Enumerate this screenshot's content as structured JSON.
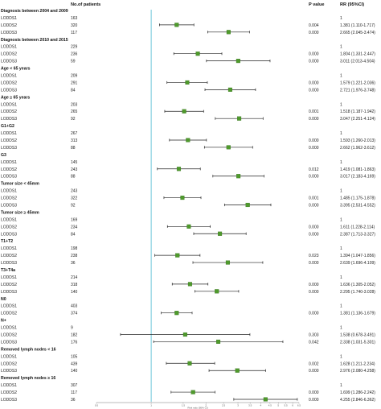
{
  "header": {
    "no_patients": "No.of patients",
    "p_value": "P value",
    "rr_ci": "RR (95%CI)"
  },
  "chart_data": {
    "type": "forest",
    "x_scale": "log",
    "xlim": [
      0.5,
      6.5
    ],
    "reference_line": 1,
    "axis_ticks": [
      "0.5",
      "1",
      "1.5",
      "2",
      "2.5",
      "3",
      "3.5",
      "4",
      "4.5",
      "5",
      "5.5",
      "6",
      "6.5"
    ],
    "axis_label": "Risk ratio (95% CI)",
    "marker_color": "#4f9a2c",
    "reference_color": "#5bc0d6",
    "groups": [
      {
        "title": "Diagnosis between 2004 and 2009",
        "rows": [
          {
            "label": "LODDS1",
            "n": "163",
            "p": "",
            "rr": 1,
            "lo": null,
            "hi": null,
            "text": "1"
          },
          {
            "label": "LODDS2",
            "n": "320",
            "p": "0.004",
            "rr": 1.381,
            "lo": 1.11,
            "hi": 1.717,
            "text": "1.381 (1.110-1.717)"
          },
          {
            "label": "LODDS3",
            "n": "117",
            "p": "0.000",
            "rr": 2.665,
            "lo": 2.045,
            "hi": 3.474,
            "text": "2.665 (2.045-3.474)"
          }
        ]
      },
      {
        "title": "Diagnosis between 2010 and 2015",
        "rows": [
          {
            "label": "LODDS1",
            "n": "229",
            "p": "",
            "rr": 1,
            "lo": null,
            "hi": null,
            "text": "1"
          },
          {
            "label": "LODDS2",
            "n": "236",
            "p": "0.000",
            "rr": 1.804,
            "lo": 1.331,
            "hi": 2.447,
            "text": "1.804 (1.331-2.447)"
          },
          {
            "label": "LODDS3",
            "n": "59",
            "p": "0.000",
            "rr": 3.011,
            "lo": 2.013,
            "hi": 4.504,
            "text": "3.011 (2.013-4.504)"
          }
        ]
      },
      {
        "title": "Age < 65 years",
        "rows": [
          {
            "label": "LODDS1",
            "n": "209",
            "p": "",
            "rr": 1,
            "lo": null,
            "hi": null,
            "text": "1"
          },
          {
            "label": "LODDS2",
            "n": "291",
            "p": "0.000",
            "rr": 1.579,
            "lo": 1.221,
            "hi": 2.036,
            "text": "1.579 (1.221-2.036)"
          },
          {
            "label": "LODDS3",
            "n": "84",
            "p": "0.000",
            "rr": 2.721,
            "lo": 1.976,
            "hi": 3.748,
            "text": "2.721 (1.976-3.748)"
          }
        ]
      },
      {
        "title": "Age ≥ 65 years",
        "rows": [
          {
            "label": "LODDS1",
            "n": "203",
            "p": "",
            "rr": 1,
            "lo": null,
            "hi": null,
            "text": "1"
          },
          {
            "label": "LODDS2",
            "n": "265",
            "p": "0.001",
            "rr": 1.518,
            "lo": 1.187,
            "hi": 1.942,
            "text": "1.518 (1.187-1.942)"
          },
          {
            "label": "LODDS3",
            "n": "92",
            "p": "0.000",
            "rr": 3.047,
            "lo": 2.251,
            "hi": 4.124,
            "text": "3.047 (2.251-4.124)"
          }
        ]
      },
      {
        "title": "G1+G2",
        "rows": [
          {
            "label": "LODDS1",
            "n": "267",
            "p": "",
            "rr": 1,
            "lo": null,
            "hi": null,
            "text": "1"
          },
          {
            "label": "LODDS2",
            "n": "313",
            "p": "0.000",
            "rr": 1.593,
            "lo": 1.26,
            "hi": 2.013,
            "text": "1.593 (1.260-2.013)"
          },
          {
            "label": "LODDS3",
            "n": "88",
            "p": "0.000",
            "rr": 2.662,
            "lo": 1.962,
            "hi": 3.612,
            "text": "2.662 (1.962-3.612)"
          }
        ]
      },
      {
        "title": "G3",
        "rows": [
          {
            "label": "LODDS1",
            "n": "145",
            "p": "",
            "rr": 1,
            "lo": null,
            "hi": null,
            "text": "1"
          },
          {
            "label": "LODDS2",
            "n": "243",
            "p": "0.012",
            "rr": 1.419,
            "lo": 1.081,
            "hi": 1.863,
            "text": "1.419 (1.081-1.863)"
          },
          {
            "label": "LODDS3",
            "n": "88",
            "p": "0.000",
            "rr": 3.017,
            "lo": 2.183,
            "hi": 4.169,
            "text": "3.017 (2.183-4.169)"
          }
        ]
      },
      {
        "title": "Tumor size < 45mm",
        "rows": [
          {
            "label": "LODDS1",
            "n": "243",
            "p": "",
            "rr": 1,
            "lo": null,
            "hi": null,
            "text": "1"
          },
          {
            "label": "LODDS2",
            "n": "322",
            "p": "0.001",
            "rr": 1.485,
            "lo": 1.175,
            "hi": 1.878,
            "text": "1.485 (1.175-1.878)"
          },
          {
            "label": "LODDS3",
            "n": "92",
            "p": "0.000",
            "rr": 3.395,
            "lo": 2.531,
            "hi": 4.552,
            "text": "3.395 (2.531-4.552)"
          }
        ]
      },
      {
        "title": "Tumor size ≥ 45mm",
        "rows": [
          {
            "label": "LODDS1",
            "n": "169",
            "p": "",
            "rr": 1,
            "lo": null,
            "hi": null,
            "text": "1"
          },
          {
            "label": "LODDS2",
            "n": "234",
            "p": "0.000",
            "rr": 1.611,
            "lo": 1.228,
            "hi": 2.114,
            "text": "1.611 (1.228-2.114)"
          },
          {
            "label": "LODDS3",
            "n": "84",
            "p": "0.000",
            "rr": 2.387,
            "lo": 1.713,
            "hi": 3.327,
            "text": "2.387 (1.713-3.327)"
          }
        ]
      },
      {
        "title": "T1+T2",
        "rows": [
          {
            "label": "LODDS1",
            "n": "198",
            "p": "",
            "rr": 1,
            "lo": null,
            "hi": null,
            "text": "1"
          },
          {
            "label": "LODDS2",
            "n": "238",
            "p": "0.023",
            "rr": 1.394,
            "lo": 1.047,
            "hi": 1.856,
            "text": "1.394 (1.047-1.856)"
          },
          {
            "label": "LODDS3",
            "n": "36",
            "p": "0.000",
            "rr": 2.639,
            "lo": 1.696,
            "hi": 4.109,
            "text": "2.639 (1.696-4.109)"
          }
        ]
      },
      {
        "title": "T3+T4a",
        "rows": [
          {
            "label": "LODDS1",
            "n": "214",
            "p": "",
            "rr": 1,
            "lo": null,
            "hi": null,
            "text": "1"
          },
          {
            "label": "LODDS2",
            "n": "318",
            "p": "0.000",
            "rr": 1.636,
            "lo": 1.305,
            "hi": 2.052,
            "text": "1.636 (1.305-2.052)"
          },
          {
            "label": "LODDS3",
            "n": "140",
            "p": "0.000",
            "rr": 2.295,
            "lo": 1.74,
            "hi": 3.028,
            "text": "2.295 (1.740-3.028)"
          }
        ]
      },
      {
        "title": "N0",
        "rows": [
          {
            "label": "LODDS1",
            "n": "403",
            "p": "",
            "rr": 1,
            "lo": null,
            "hi": null,
            "text": "1"
          },
          {
            "label": "LODDS2",
            "n": "374",
            "p": "0.000",
            "rr": 1.381,
            "lo": 1.136,
            "hi": 1.679,
            "text": "1.381 (1.136-1.679)"
          }
        ]
      },
      {
        "title": "N+",
        "rows": [
          {
            "label": "LODDS1",
            "n": "9",
            "p": "",
            "rr": 1,
            "lo": null,
            "hi": null,
            "text": "1"
          },
          {
            "label": "LODDS2",
            "n": "182",
            "p": "0.303",
            "rr": 1.538,
            "lo": 0.678,
            "hi": 3.491,
            "text": "1.538 (0.678-3.491)"
          },
          {
            "label": "LODDS3",
            "n": "176",
            "p": "0.042",
            "rr": 2.338,
            "lo": 1.031,
            "hi": 5.301,
            "text": "2.338 (1.031-5.301)"
          }
        ]
      },
      {
        "title": "Removed lymph nodes < 16",
        "rows": [
          {
            "label": "LODDS1",
            "n": "105",
            "p": "",
            "rr": 1,
            "lo": null,
            "hi": null,
            "text": "1"
          },
          {
            "label": "LODDS2",
            "n": "439",
            "p": "0.002",
            "rr": 1.628,
            "lo": 1.211,
            "hi": 2.234,
            "text": "1.628 (1.211-2.234)"
          },
          {
            "label": "LODDS3",
            "n": "140",
            "p": "0.000",
            "rr": 2.976,
            "lo": 2.08,
            "hi": 4.258,
            "text": "2.976 (2.080-4.258)"
          }
        ]
      },
      {
        "title": "Removed lymph nodes ≥ 16",
        "rows": [
          {
            "label": "LODDS1",
            "n": "307",
            "p": "",
            "rr": 1,
            "lo": null,
            "hi": null,
            "text": "1"
          },
          {
            "label": "LODDS2",
            "n": "117",
            "p": "0.000",
            "rr": 1.699,
            "lo": 1.286,
            "hi": 2.242,
            "text": "1.699 (1.286-2.242)"
          },
          {
            "label": "LODDS3",
            "n": "36",
            "p": "0.000",
            "rr": 4.255,
            "lo": 2.846,
            "hi": 6.362,
            "text": "4.255 (2.846-6.362)"
          }
        ]
      }
    ]
  }
}
